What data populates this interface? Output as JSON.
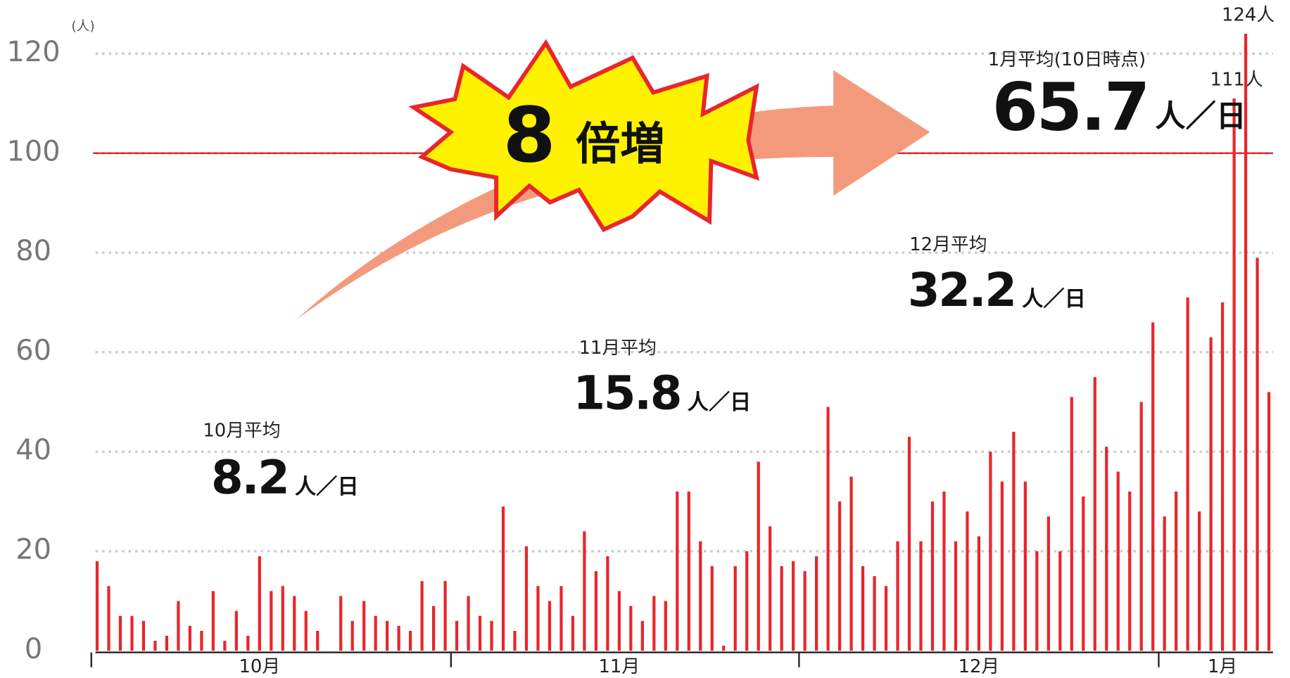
{
  "chart_data": {
    "type": "bar",
    "y_unit": "(人)",
    "color": "#e8262b",
    "categories": [
      null,
      null,
      null,
      null,
      null,
      null,
      null,
      null,
      null,
      null,
      null,
      null,
      null,
      null,
      "10月",
      null,
      null,
      null,
      null,
      null,
      null,
      null,
      null,
      null,
      null,
      null,
      null,
      null,
      null,
      null,
      null,
      null,
      null,
      null,
      null,
      null,
      null,
      null,
      null,
      null,
      null,
      null,
      null,
      null,
      null,
      "11月",
      null,
      null,
      null,
      null,
      null,
      null,
      null,
      null,
      null,
      null,
      null,
      null,
      null,
      null,
      null,
      null,
      null,
      null,
      null,
      null,
      null,
      null,
      null,
      null,
      null,
      null,
      null,
      null,
      null,
      null,
      "12月",
      null,
      null,
      null,
      null,
      null,
      null,
      null,
      null,
      null,
      null,
      null,
      null,
      null,
      null,
      null,
      null,
      null,
      null,
      null,
      null,
      "1月",
      null,
      null,
      null,
      null
    ],
    "values": [
      18,
      13,
      7,
      7,
      6,
      2,
      3,
      10,
      5,
      4,
      12,
      2,
      8,
      3,
      19,
      12,
      13,
      11,
      8,
      4,
      0,
      11,
      6,
      10,
      7,
      6,
      5,
      4,
      14,
      9,
      14,
      6,
      11,
      7,
      6,
      29,
      4,
      21,
      13,
      10,
      13,
      7,
      24,
      16,
      19,
      12,
      9,
      6,
      11,
      10,
      32,
      32,
      22,
      17,
      1,
      17,
      20,
      38,
      25,
      17,
      18,
      16,
      19,
      49,
      30,
      35,
      17,
      15,
      13,
      22,
      43,
      22,
      30,
      32,
      22,
      28,
      23,
      40,
      34,
      44,
      34,
      20,
      27,
      20,
      51,
      31,
      55,
      41,
      36,
      32,
      50,
      66,
      27,
      32,
      71,
      28,
      63,
      70,
      111,
      124,
      79,
      52
    ],
    "value_labels": [
      null,
      null,
      null,
      null,
      null,
      null,
      null,
      null,
      null,
      null,
      null,
      null,
      null,
      null,
      null,
      null,
      null,
      null,
      null,
      null,
      null,
      null,
      null,
      null,
      null,
      null,
      null,
      null,
      null,
      null,
      null,
      null,
      null,
      null,
      null,
      null,
      null,
      null,
      null,
      null,
      null,
      null,
      null,
      null,
      null,
      null,
      null,
      null,
      null,
      null,
      null,
      null,
      null,
      null,
      null,
      null,
      null,
      null,
      null,
      null,
      null,
      null,
      null,
      null,
      null,
      null,
      null,
      null,
      null,
      null,
      null,
      null,
      null,
      null,
      null,
      null,
      null,
      null,
      null,
      null,
      null,
      null,
      null,
      null,
      null,
      null,
      null,
      null,
      null,
      null,
      null,
      null,
      null,
      null,
      null,
      null,
      null,
      null,
      "111人",
      "124人",
      null,
      null
    ],
    "ylim": [
      0,
      120
    ],
    "yticks": [
      0,
      20,
      40,
      60,
      80,
      100,
      120
    ],
    "grid": true,
    "reference_line": 100,
    "annotations": [
      {
        "label": "10月平均",
        "value": 8.2,
        "unit": "人／日"
      },
      {
        "label": "11月平均",
        "value": 15.8,
        "unit": "人／日"
      },
      {
        "label": "12月平均",
        "value": 32.2,
        "unit": "人／日"
      },
      {
        "label": "1月平均(10日時点)",
        "value": 65.7,
        "unit": "人／日"
      }
    ],
    "burst": {
      "number": 8,
      "text": "倍増"
    }
  }
}
